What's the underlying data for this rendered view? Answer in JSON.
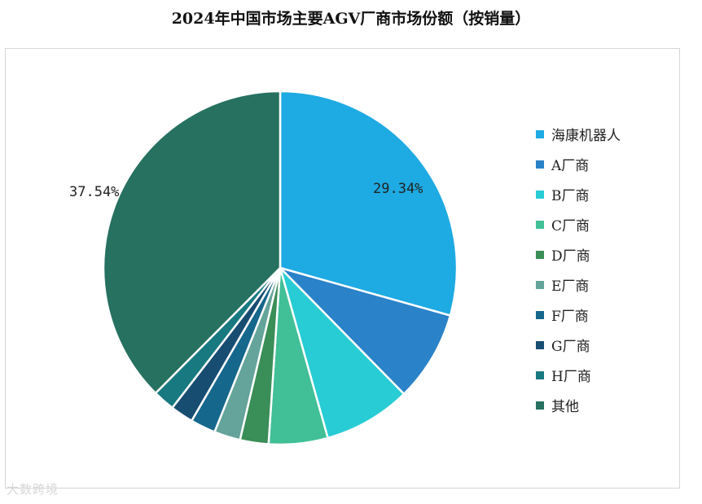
{
  "chart_data": {
    "type": "pie",
    "title": "2024年中国市场主要AGV厂商市场份额（按销量）",
    "legend_position": "right",
    "slices": [
      {
        "label": "海康机器人",
        "value": 29.34,
        "color": "#1eaae2"
      },
      {
        "label": "A厂商",
        "value": 8.3,
        "color": "#2a82c8"
      },
      {
        "label": "B厂商",
        "value": 8.0,
        "color": "#27ccd4"
      },
      {
        "label": "C厂商",
        "value": 5.4,
        "color": "#41bf96"
      },
      {
        "label": "D厂商",
        "value": 2.6,
        "color": "#3a8e57"
      },
      {
        "label": "E厂商",
        "value": 2.4,
        "color": "#64a49a"
      },
      {
        "label": "F厂商",
        "value": 2.3,
        "color": "#16678c"
      },
      {
        "label": "G厂商",
        "value": 2.1,
        "color": "#184d72"
      },
      {
        "label": "H厂商",
        "value": 2.0,
        "color": "#187a80"
      },
      {
        "label": "其他",
        "value": 37.54,
        "color": "#267160"
      }
    ],
    "data_labels": [
      "29.34%",
      "37.54%"
    ]
  },
  "watermark": "大数跨境"
}
